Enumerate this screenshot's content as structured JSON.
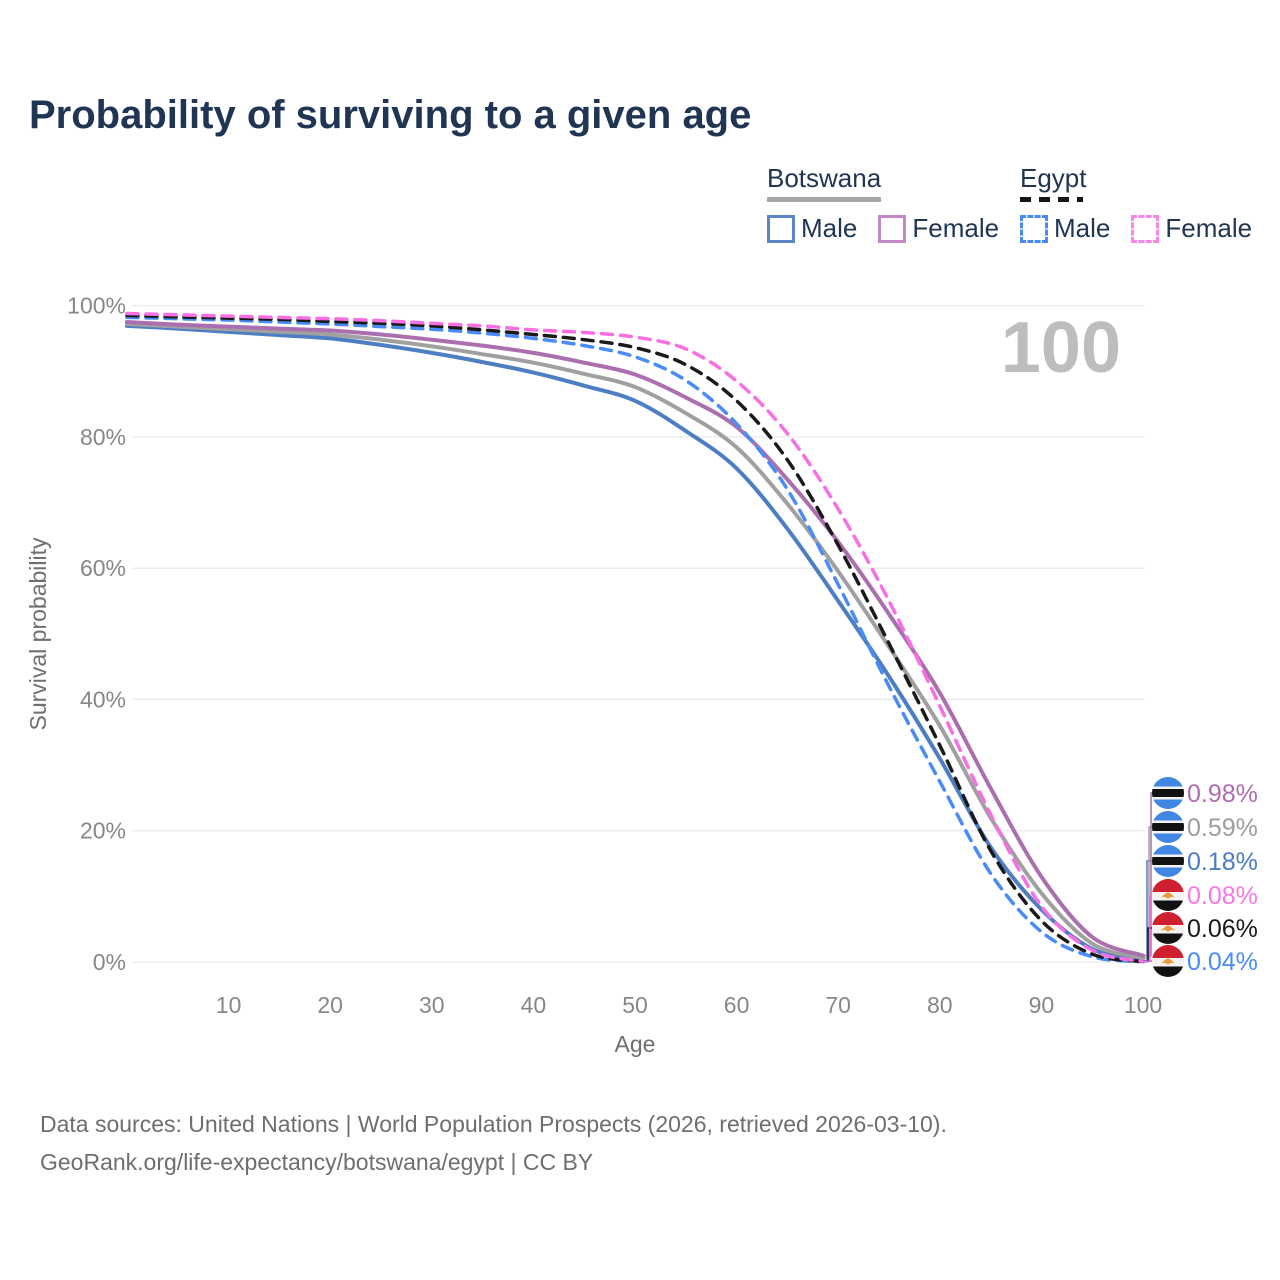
{
  "title": "Probability of surviving to a given age",
  "watermark": "100",
  "legend": {
    "groups": [
      {
        "label": "Botswana",
        "underline_style": "solid",
        "underline_color": "#a7a7a7",
        "items": [
          {
            "label": "Male",
            "color": "#5b84c4",
            "dashed": false
          },
          {
            "label": "Female",
            "color": "#c287c7",
            "dashed": false
          }
        ]
      },
      {
        "label": "Egypt",
        "underline_style": "dashed",
        "underline_color": "#151515",
        "items": [
          {
            "label": "Male",
            "color": "#4a8cf7",
            "dashed": true
          },
          {
            "label": "Female",
            "color": "#fb85ea",
            "dashed": true
          }
        ]
      }
    ]
  },
  "axes": {
    "x": {
      "label": "Age",
      "min": 0,
      "max": 100,
      "ticks": [
        10,
        20,
        30,
        40,
        50,
        60,
        70,
        80,
        90,
        100
      ]
    },
    "y": {
      "label": "Survival probability",
      "min": 0,
      "max": 100,
      "tick_values": [
        0,
        20,
        40,
        60,
        80,
        100
      ],
      "tick_labels": [
        "0%",
        "20%",
        "40%",
        "60%",
        "80%",
        "100%"
      ]
    }
  },
  "chart_data": {
    "type": "line",
    "title": "Probability of surviving to a given age",
    "xlabel": "Age",
    "ylabel": "Survival probability",
    "xlim": [
      0,
      100
    ],
    "ylim": [
      0,
      100
    ],
    "grid": "horizontal-only",
    "legend_position": "top-right",
    "x": [
      0,
      5,
      10,
      15,
      20,
      25,
      30,
      35,
      40,
      45,
      50,
      55,
      60,
      65,
      70,
      75,
      80,
      85,
      90,
      95,
      100
    ],
    "series": [
      {
        "name": "Botswana Male",
        "country": "Botswana",
        "sex": "Male",
        "color": "#4d7ec3",
        "dash": "solid",
        "flag": "botswana-flag-icon",
        "end_label": "0.18%",
        "end_label_color": "#4a7cc9",
        "label_row": 2,
        "values": [
          96.9,
          96.5,
          96.0,
          95.5,
          95.0,
          94.0,
          92.8,
          91.4,
          89.8,
          87.8,
          85.5,
          80.9,
          75.2,
          66.0,
          55.0,
          43.5,
          31.0,
          17.5,
          8.0,
          2.0,
          0.18
        ]
      },
      {
        "name": "Botswana (both sexes)",
        "country": "Botswana",
        "sex": "Both",
        "color": "#a0a0a0",
        "dash": "solid",
        "flag": "botswana-flag-icon",
        "end_label": "0.59%",
        "end_label_color": "#9d9d9d",
        "label_row": 1,
        "values": [
          97.2,
          96.8,
          96.4,
          96.0,
          95.6,
          94.8,
          93.8,
          92.6,
          91.3,
          89.6,
          87.6,
          83.6,
          78.4,
          69.8,
          59.5,
          48.0,
          36.0,
          22.0,
          10.5,
          2.8,
          0.59
        ]
      },
      {
        "name": "Botswana Female",
        "country": "Botswana",
        "sex": "Female",
        "color": "#ab6fb0",
        "dash": "solid",
        "flag": "botswana-flag-icon",
        "end_label": "0.98%",
        "end_label_color": "#b06cb0",
        "label_row": 0,
        "values": [
          97.5,
          97.1,
          96.8,
          96.5,
          96.2,
          95.6,
          94.8,
          93.9,
          92.8,
          91.3,
          89.5,
          86.0,
          81.5,
          73.5,
          64.0,
          53.0,
          41.0,
          26.5,
          13.0,
          3.8,
          0.98
        ]
      },
      {
        "name": "Egypt Male",
        "country": "Egypt",
        "sex": "Male",
        "color": "#4a8cf7",
        "dash": "dashed",
        "flag": "egypt-flag-icon",
        "end_label": "0.04%",
        "end_label_color": "#4a8cf7",
        "label_row": 5,
        "values": [
          98.2,
          98.0,
          97.8,
          97.5,
          97.2,
          96.8,
          96.4,
          95.8,
          95.0,
          93.9,
          92.2,
          88.6,
          82.0,
          72.0,
          57.5,
          42.0,
          27.5,
          13.5,
          4.6,
          0.8,
          0.04
        ]
      },
      {
        "name": "Egypt (both sexes)",
        "country": "Egypt",
        "sex": "Both",
        "color": "#1a1a1a",
        "dash": "dashed",
        "flag": "egypt-flag-icon",
        "end_label": "0.06%",
        "end_label_color": "#1a1a1a",
        "label_row": 4,
        "values": [
          98.5,
          98.3,
          98.1,
          97.9,
          97.6,
          97.3,
          96.9,
          96.3,
          95.6,
          94.8,
          93.6,
          91.0,
          85.5,
          76.5,
          63.5,
          48.5,
          33.0,
          17.0,
          6.3,
          1.2,
          0.06
        ]
      },
      {
        "name": "Egypt Female",
        "country": "Egypt",
        "sex": "Female",
        "color": "#f96fe3",
        "dash": "dashed",
        "flag": "egypt-flag-icon",
        "end_label": "0.08%",
        "end_label_color": "#fb77e4",
        "label_row": 3,
        "values": [
          98.8,
          98.6,
          98.4,
          98.2,
          98.0,
          97.7,
          97.3,
          96.9,
          96.3,
          95.9,
          95.2,
          93.4,
          88.5,
          80.5,
          69.0,
          55.0,
          39.0,
          22.5,
          8.5,
          1.8,
          0.08
        ]
      }
    ]
  },
  "colors": {
    "title_text": "#1f3553",
    "gridline": "#e9e9e9",
    "tick_text": "#878787",
    "axis_title_text": "#6f6f6f",
    "watermark_text": "#bdbdbd",
    "footer_text": "#6e6e6e",
    "botswana_flag_blue": "#3f87e3",
    "egypt_flag_red": "#ce2030",
    "egypt_flag_gold": "#e89c3f"
  },
  "footer": {
    "line1": "Data sources: United Nations | World Population Prospects (2026, retrieved 2026-03-10).",
    "line2": "GeoRank.org/life-expectancy/botswana/egypt | CC BY"
  }
}
